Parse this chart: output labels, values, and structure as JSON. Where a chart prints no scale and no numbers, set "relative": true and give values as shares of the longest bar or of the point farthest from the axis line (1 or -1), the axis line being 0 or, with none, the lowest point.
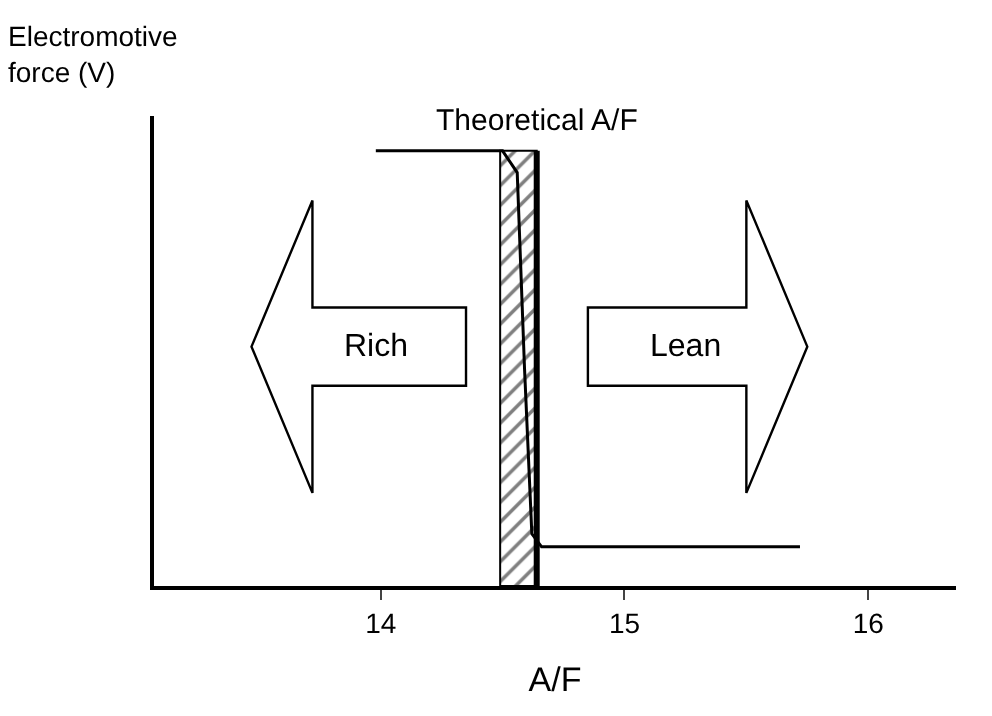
{
  "chart_data": {
    "type": "line",
    "relative": true,
    "ylabel": "Electromotive force (V)",
    "xlabel": "A/F",
    "x": [
      13.98,
      14.5,
      14.56,
      14.59,
      14.62,
      14.66,
      15.72
    ],
    "series": [
      {
        "color": "#000000",
        "values": [
          1,
          1,
          0.95,
          0.5,
          0.12,
          0.09,
          0.09
        ]
      }
    ],
    "xlim": [
      13.07,
      16.36
    ],
    "xticks": [
      14,
      15,
      16
    ],
    "ref_lines": [
      {
        "axis": "x",
        "value": 14.64,
        "label": "Theoretical A/F",
        "color": "#000000"
      }
    ],
    "bands": [
      {
        "axis": "x",
        "from": 14.49,
        "to": 14.64,
        "color": "#000000"
      }
    ],
    "annotations": [
      "Rich",
      "Lean"
    ],
    "legend": false,
    "marker": "none",
    "line_style": "solid"
  }
}
